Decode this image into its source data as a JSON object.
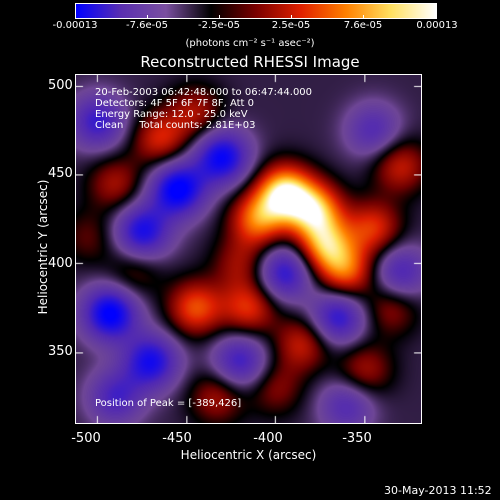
{
  "colorbar": {
    "ticks": [
      "-0.00013",
      "-7.6e-05",
      "-2.5e-05",
      "2.5e-05",
      "7.6e-05",
      "0.00013"
    ],
    "units": "(photons cm⁻² s⁻¹ asec⁻²)",
    "gradient_colors": [
      "#0000ff",
      "#5a2fb0",
      "#7a4fa0",
      "#000000",
      "#7a0000",
      "#e02000",
      "#ff8000",
      "#ffe060",
      "#ffffff"
    ]
  },
  "title": "Reconstructed RHESSI Image",
  "info": {
    "time_range": "20-Feb-2003 06:42:48.000 to 06:47:44.000",
    "detectors": "Detectors: 4F 5F 6F 7F 8F, Att 0",
    "energy_range": "Energy Range: 12.0 - 25.0 keV",
    "clean_counts": "Clean     Total counts: 2.81E+03",
    "peak_position": "Position of Peak = [-389,426]"
  },
  "axes": {
    "xlabel": "Heliocentric X (arcsec)",
    "ylabel": "Heliocentric Y (arcsec)",
    "x_ticks": [
      "-500",
      "-450",
      "-400",
      "-350"
    ],
    "y_ticks": [
      "500",
      "450",
      "400",
      "350"
    ]
  },
  "chart_data": {
    "type": "heatmap",
    "title": "Reconstructed RHESSI Image",
    "xlabel": "Heliocentric X (arcsec)",
    "ylabel": "Heliocentric Y (arcsec)",
    "xlim": [
      -512,
      -318
    ],
    "ylim": [
      310,
      506
    ],
    "color_range": [
      -0.00013,
      0.00013
    ],
    "peak_position": [
      -389,
      426
    ],
    "colormap": "blue-purple-black-red-yellow-white",
    "blobs": [
      {
        "x": -395,
        "y": 440,
        "value": 0.00013
      },
      {
        "x": -378,
        "y": 430,
        "value": 0.00011
      },
      {
        "x": -410,
        "y": 425,
        "value": 9e-05
      },
      {
        "x": -372,
        "y": 410,
        "value": 0.0001
      },
      {
        "x": -360,
        "y": 395,
        "value": 8e-05
      },
      {
        "x": -345,
        "y": 420,
        "value": 7e-05
      },
      {
        "x": -330,
        "y": 455,
        "value": 6e-05
      },
      {
        "x": -465,
        "y": 470,
        "value": 6.5e-05
      },
      {
        "x": -445,
        "y": 485,
        "value": 5e-05
      },
      {
        "x": -490,
        "y": 445,
        "value": 5e-05
      },
      {
        "x": -445,
        "y": 375,
        "value": 8e-05
      },
      {
        "x": -415,
        "y": 375,
        "value": 7e-05
      },
      {
        "x": -420,
        "y": 400,
        "value": 4.5e-05
      },
      {
        "x": -385,
        "y": 355,
        "value": 6e-05
      },
      {
        "x": -350,
        "y": 340,
        "value": 5e-05
      },
      {
        "x": -400,
        "y": 330,
        "value": 4e-05
      },
      {
        "x": -433,
        "y": 325,
        "value": 5e-05
      },
      {
        "x": -480,
        "y": 395,
        "value": 3.5e-05
      },
      {
        "x": -505,
        "y": 415,
        "value": 3e-05
      },
      {
        "x": -335,
        "y": 375,
        "value": 4.5e-05
      },
      {
        "x": -455,
        "y": 442,
        "value": -0.00012
      },
      {
        "x": -475,
        "y": 418,
        "value": -0.0001
      },
      {
        "x": -430,
        "y": 460,
        "value": -0.00011
      },
      {
        "x": -493,
        "y": 372,
        "value": -0.00012
      },
      {
        "x": -470,
        "y": 345,
        "value": -0.0001
      },
      {
        "x": -395,
        "y": 395,
        "value": -9e-05
      },
      {
        "x": -365,
        "y": 370,
        "value": -9e-05
      },
      {
        "x": -500,
        "y": 480,
        "value": -8e-05
      },
      {
        "x": -420,
        "y": 345,
        "value": -8e-05
      },
      {
        "x": -330,
        "y": 395,
        "value": -7e-05
      },
      {
        "x": -345,
        "y": 475,
        "value": -6e-05
      },
      {
        "x": -490,
        "y": 325,
        "value": -7e-05
      },
      {
        "x": -360,
        "y": 320,
        "value": -6e-05
      }
    ]
  },
  "footer": {
    "date": "30-May-2013 11:52"
  }
}
